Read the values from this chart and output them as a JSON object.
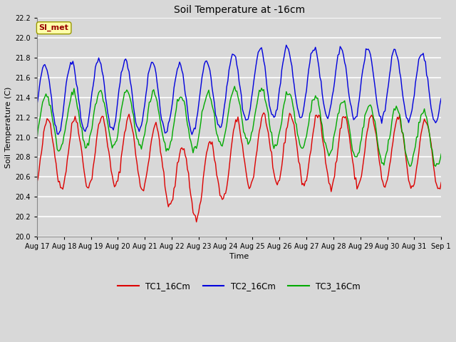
{
  "title": "Soil Temperature at -16cm",
  "xlabel": "Time",
  "ylabel": "Soil Temperature (C)",
  "ylim": [
    20.0,
    22.2
  ],
  "yticks": [
    20.0,
    20.2,
    20.4,
    20.6,
    20.8,
    21.0,
    21.2,
    21.4,
    21.6,
    21.8,
    22.0,
    22.2
  ],
  "background_color": "#d8d8d8",
  "plot_bg_color": "#d8d8d8",
  "grid_color": "#ffffff",
  "legend_label": "SI_met",
  "legend_box_color": "#ffffaa",
  "legend_text_color": "#990000",
  "series": [
    {
      "label": "TC1_16Cm",
      "color": "#dd0000"
    },
    {
      "label": "TC2_16Cm",
      "color": "#0000dd"
    },
    {
      "label": "TC3_16Cm",
      "color": "#00aa00"
    }
  ],
  "x_tick_labels": [
    "Aug 17",
    "Aug 18",
    "Aug 19",
    "Aug 20",
    "Aug 21",
    "Aug 22",
    "Aug 23",
    "Aug 24",
    "Aug 25",
    "Aug 26",
    "Aug 27",
    "Aug 28",
    "Aug 29",
    "Aug 30",
    "Aug 31",
    "Sep 1"
  ],
  "figsize": [
    6.4,
    4.8
  ],
  "dpi": 100
}
